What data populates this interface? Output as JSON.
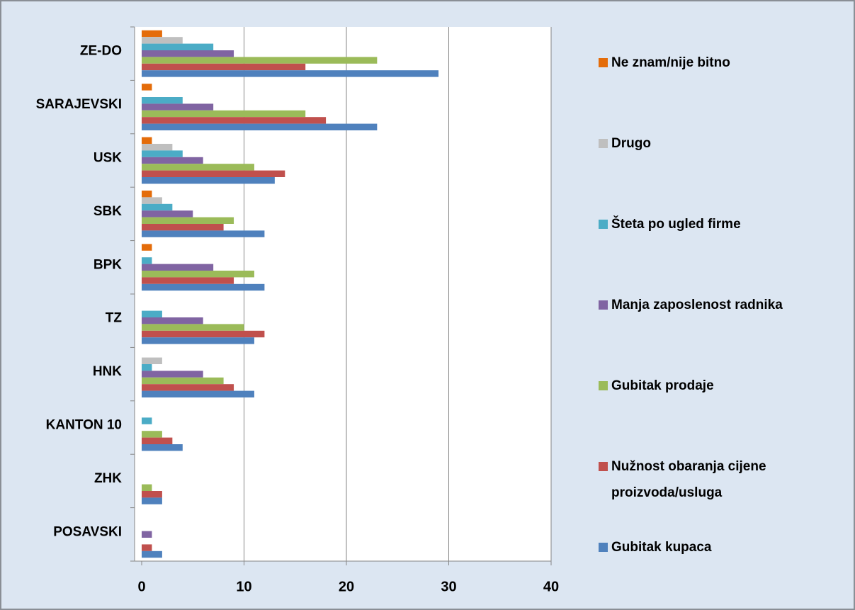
{
  "chart_data": {
    "type": "bar",
    "orientation": "horizontal",
    "categories": [
      "ZE-DO",
      "SARAJEVSKI",
      "USK",
      "SBK",
      "BPK",
      "TZ",
      "HNK",
      "KANTON 10",
      "ZHK",
      "POSAVSKI"
    ],
    "series": [
      {
        "name": "Ne znam/nije bitno",
        "color": "#e46c0a",
        "values": [
          2,
          1,
          1,
          1,
          1,
          0,
          0,
          0,
          0,
          0
        ]
      },
      {
        "name": "Drugo",
        "color": "#bfbfbf",
        "values": [
          4,
          0,
          3,
          2,
          0,
          0,
          2,
          0,
          0,
          0
        ]
      },
      {
        "name": "Šteta po ugled firme",
        "color": "#4bacc6",
        "values": [
          7,
          4,
          4,
          3,
          1,
          2,
          1,
          1,
          0,
          0
        ]
      },
      {
        "name": "Manja zaposlenost radnika",
        "color": "#8064a2",
        "values": [
          9,
          7,
          6,
          5,
          7,
          6,
          6,
          0,
          0,
          1
        ]
      },
      {
        "name": "Gubitak prodaje",
        "color": "#9bbb59",
        "values": [
          23,
          16,
          11,
          9,
          11,
          10,
          8,
          2,
          1,
          0
        ]
      },
      {
        "name": "Nužnost obaranja cijene proizvoda/usluga",
        "color": "#c0504d",
        "values": [
          16,
          18,
          14,
          8,
          9,
          12,
          9,
          3,
          2,
          1
        ]
      },
      {
        "name": "Gubitak kupaca",
        "color": "#4f81bd",
        "values": [
          29,
          23,
          13,
          12,
          12,
          11,
          11,
          4,
          2,
          2
        ]
      }
    ],
    "xlim": [
      0,
      40
    ],
    "xticks": [
      0,
      10,
      20,
      30,
      40
    ],
    "grid": true,
    "legend": "right"
  }
}
